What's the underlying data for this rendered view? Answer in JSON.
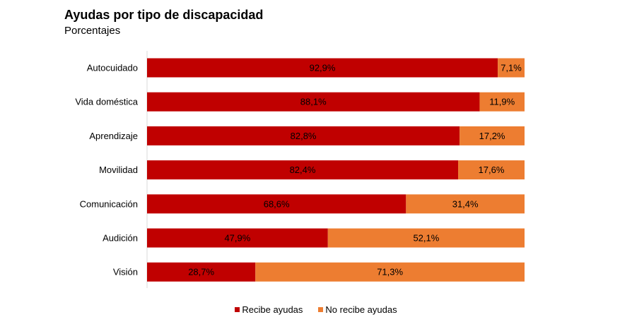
{
  "chart_data": {
    "type": "bar",
    "orientation": "horizontal",
    "stacked": true,
    "title": "Ayudas por tipo de discapacidad",
    "subtitle": "Porcentajes",
    "categories": [
      "Autocuidado",
      "Vida doméstica",
      "Aprendizaje",
      "Movilidad",
      "Comunicación",
      "Audición",
      "Visión"
    ],
    "series": [
      {
        "name": "Recibe ayudas",
        "color": "#c00000",
        "values": [
          92.9,
          88.1,
          82.8,
          82.4,
          68.6,
          47.9,
          28.7
        ],
        "labels": [
          "92,9%",
          "88,1%",
          "82,8%",
          "82,4%",
          "68,6%",
          "47,9%",
          "28,7%"
        ]
      },
      {
        "name": "No recibe ayudas",
        "color": "#ed7d31",
        "values": [
          7.1,
          11.9,
          17.2,
          17.6,
          31.4,
          52.1,
          71.3
        ],
        "labels": [
          "7,1%",
          "11,9%",
          "17,2%",
          "17,6%",
          "31,4%",
          "52,1%",
          "71,3%"
        ]
      }
    ],
    "xlim": [
      0,
      100
    ],
    "grid": false,
    "legend_position": "bottom"
  }
}
